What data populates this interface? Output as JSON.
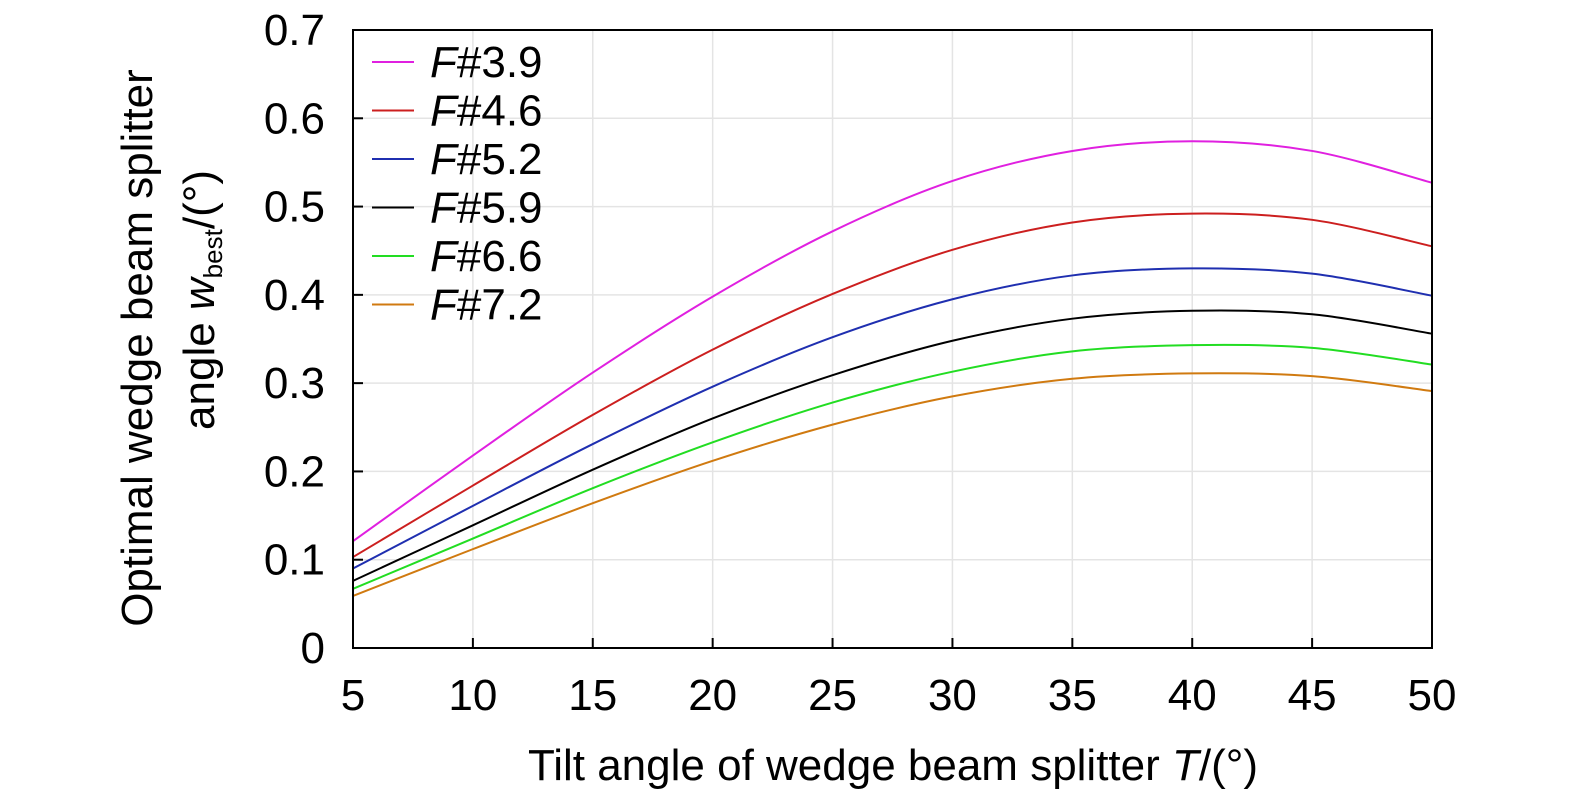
{
  "chart_data": {
    "type": "line",
    "xlabel": {
      "main": "Tilt angle of wedge beam splitter ",
      "var": "T",
      "unit": "/(°)"
    },
    "ylabel": {
      "line1": "Optimal wedge beam splitter",
      "line2_prefix": "angle ",
      "var": "w",
      "sub": "best",
      "unit": "/(°)"
    },
    "xlim": [
      5,
      50
    ],
    "ylim": [
      0,
      0.7
    ],
    "xticks": [
      5,
      10,
      15,
      20,
      25,
      30,
      35,
      40,
      45,
      50
    ],
    "xtick_labels": [
      "5",
      "10",
      "15",
      "20",
      "25",
      "30",
      "35",
      "40",
      "45",
      "50"
    ],
    "yticks": [
      0,
      0.1,
      0.2,
      0.3,
      0.4,
      0.5,
      0.6,
      0.7
    ],
    "ytick_labels": [
      "0",
      "0.1",
      "0.2",
      "0.3",
      "0.4",
      "0.5",
      "0.6",
      "0.7"
    ],
    "grid": true,
    "legend_position": "top-left",
    "x": [
      5,
      10,
      15,
      20,
      25,
      30,
      35,
      40,
      45,
      50
    ],
    "series": [
      {
        "name_prefix": "F",
        "name_suffix": "#3.9",
        "color": "#e020e0",
        "values": [
          0.121,
          0.218,
          0.312,
          0.398,
          0.472,
          0.529,
          0.563,
          0.574,
          0.563,
          0.527
        ]
      },
      {
        "name_prefix": "F",
        "name_suffix": "#4.6",
        "color": "#cc1f1f",
        "values": [
          0.103,
          0.184,
          0.264,
          0.338,
          0.401,
          0.451,
          0.482,
          0.492,
          0.485,
          0.455
        ]
      },
      {
        "name_prefix": "F",
        "name_suffix": "#5.2",
        "color": "#1f2fb0",
        "values": [
          0.09,
          0.161,
          0.231,
          0.296,
          0.352,
          0.395,
          0.422,
          0.43,
          0.424,
          0.399
        ]
      },
      {
        "name_prefix": "F",
        "name_suffix": "#5.9",
        "color": "#000000",
        "values": [
          0.076,
          0.139,
          0.202,
          0.26,
          0.309,
          0.348,
          0.373,
          0.382,
          0.378,
          0.356
        ]
      },
      {
        "name_prefix": "F",
        "name_suffix": "#6.6",
        "color": "#22dd22",
        "values": [
          0.067,
          0.124,
          0.181,
          0.233,
          0.278,
          0.313,
          0.336,
          0.343,
          0.34,
          0.321
        ]
      },
      {
        "name_prefix": "F",
        "name_suffix": "#7.2",
        "color": "#d07a10",
        "values": [
          0.059,
          0.112,
          0.164,
          0.212,
          0.253,
          0.285,
          0.305,
          0.311,
          0.308,
          0.291
        ]
      }
    ]
  }
}
